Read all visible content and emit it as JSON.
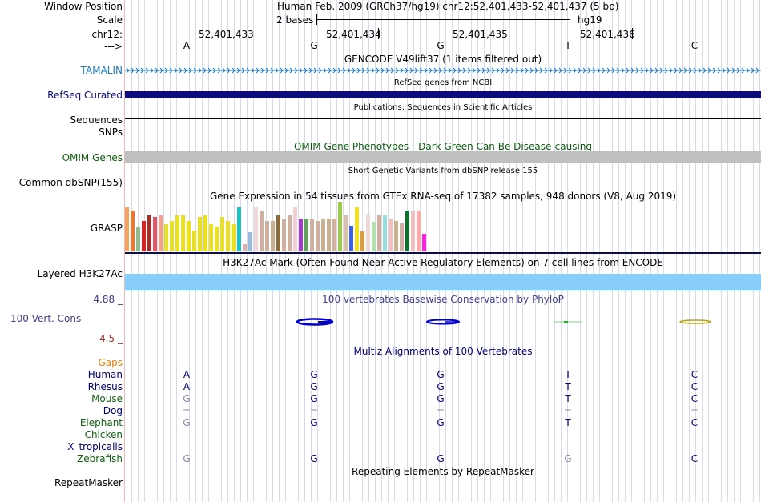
{
  "header": {
    "window_position_label": "Window Position",
    "window_position_value": "Human Feb. 2009 (GRCh37/hg19)   chr12:52,401,433-52,401,437 (5 bp)",
    "scale_label": "Scale",
    "scale_value": "2 bases",
    "scale_assembly": "hg19",
    "chrom_label": "chr12:",
    "positions": [
      "52,401,433",
      "52,401,434",
      "52,401,435",
      "52,401,436"
    ],
    "strand_label": "--->",
    "bases": [
      "A",
      "G",
      "G",
      "T",
      "C"
    ]
  },
  "tracks": {
    "gencode_title": "GENCODE V49lift37 (1 items filtered out)",
    "tamalin_label": "TAMALIN",
    "refseq_title": "RefSeq genes from NCBI",
    "refseq_label": "RefSeq Curated",
    "pubs_title": "Publications: Sequences in Scientific Articles",
    "sequences_label": "Sequences",
    "snps_label": "SNPs",
    "omim_title": "OMIM Gene Phenotypes - Dark Green Can Be Disease-causing",
    "omim_label": "OMIM Genes",
    "dbsnp_title": "Short Genetic Variants from dbSNP release 155",
    "dbsnp_label": "Common dbSNP(155)",
    "gtex_title": "Gene Expression in 54 tissues from GTEx RNA-seq of 17382 samples, 948 donors (V8, Aug 2019)",
    "grasp_label": "GRASP",
    "h3k27ac_title": "H3K27Ac Mark (Often Found Near Active Regulatory Elements) on 7 cell lines from ENCODE",
    "h3k27ac_label": "Layered H3K27Ac",
    "phylop_max": "4.88 _",
    "phylop_title": "100 vertebrates Basewise Conservation by PhyloP",
    "cons_label": "100 Vert. Cons",
    "phylop_min": "-4.5 _",
    "multiz_title": "Multiz Alignments of 100 Vertebrates",
    "repeat_title": "Repeating Elements by RepeatMasker",
    "repeat_label": "RepeatMasker"
  },
  "gtex_bars": [
    {
      "v": 0.89,
      "c": "#f4a460"
    },
    {
      "v": 0.82,
      "c": "#e57a3a"
    },
    {
      "v": 0.5,
      "c": "#8fbc8f"
    },
    {
      "v": 0.62,
      "c": "#dc2020"
    },
    {
      "v": 0.73,
      "c": "#a0302a"
    },
    {
      "v": 0.7,
      "c": "#e0556a"
    },
    {
      "v": 0.73,
      "c": "#f5a08a"
    },
    {
      "v": 0.55,
      "c": "#e8e020"
    },
    {
      "v": 0.62,
      "c": "#e8e020"
    },
    {
      "v": 0.72,
      "c": "#e8e020"
    },
    {
      "v": 0.72,
      "c": "#e8e020"
    },
    {
      "v": 0.62,
      "c": "#e8e020"
    },
    {
      "v": 0.42,
      "c": "#e8e020"
    },
    {
      "v": 0.69,
      "c": "#e8e020"
    },
    {
      "v": 0.72,
      "c": "#e8e020"
    },
    {
      "v": 0.55,
      "c": "#e8e020"
    },
    {
      "v": 0.5,
      "c": "#e8e020"
    },
    {
      "v": 0.69,
      "c": "#e8e020"
    },
    {
      "v": 0.62,
      "c": "#e8e020"
    },
    {
      "v": 0.55,
      "c": "#e8e020"
    },
    {
      "v": 0.89,
      "c": "#20c0c0"
    },
    {
      "v": 0.14,
      "c": "#d8b0b0"
    },
    {
      "v": 0.38,
      "c": "#99bbdd"
    },
    {
      "v": 0.89,
      "c": "#f0d8d8"
    },
    {
      "v": 0.82,
      "c": "#d0b0a0"
    },
    {
      "v": 0.62,
      "c": "#d0b0a0"
    },
    {
      "v": 0.62,
      "c": "#c8b090"
    },
    {
      "v": 0.73,
      "c": "#8c6a3a"
    },
    {
      "v": 0.66,
      "c": "#d0b0a0"
    },
    {
      "v": 0.72,
      "c": "#d0b0a0"
    },
    {
      "v": 0.9,
      "c": "#f0d0d0"
    },
    {
      "v": 0.66,
      "c": "#a040c0"
    },
    {
      "v": 0.66,
      "c": "#60a060"
    },
    {
      "v": 0.66,
      "c": "#d0b0a0"
    },
    {
      "v": 0.62,
      "c": "#d0b0a0"
    },
    {
      "v": 0.66,
      "c": "#c8b090"
    },
    {
      "v": 0.66,
      "c": "#c8b090"
    },
    {
      "v": 0.66,
      "c": "#d0b0a0"
    },
    {
      "v": 1.0,
      "c": "#99cc44"
    },
    {
      "v": 0.73,
      "c": "#d8c0b0"
    },
    {
      "v": 0.51,
      "c": "#4060e0"
    },
    {
      "v": 0.89,
      "c": "#f0e020"
    },
    {
      "v": 0.4,
      "c": "#d8a040"
    },
    {
      "v": 0.76,
      "c": "#f0d8d8"
    },
    {
      "v": 0.6,
      "c": "#b0e0b0"
    },
    {
      "v": 0.73,
      "c": "#d0b0a0"
    },
    {
      "v": 0.73,
      "c": "#99dddd"
    },
    {
      "v": 0.66,
      "c": "#f0c0c0"
    },
    {
      "v": 0.62,
      "c": "#c8b090"
    },
    {
      "v": 0.56,
      "c": "#d0b0a0"
    },
    {
      "v": 0.82,
      "c": "#107030"
    },
    {
      "v": 0.8,
      "c": "#f0c0c0"
    },
    {
      "v": 0.8,
      "c": "#ffaaaa"
    },
    {
      "v": 0.35,
      "c": "#ff20e0"
    }
  ],
  "species": [
    {
      "name": "Gaps",
      "color": "#e08010",
      "bases": [
        "",
        "",
        "",
        "",
        ""
      ],
      "base_colors": []
    },
    {
      "name": "Human",
      "color": "#000070",
      "bases": [
        "A",
        "G",
        "G",
        "T",
        "C"
      ],
      "base_colors": [
        "#000070",
        "#000070",
        "#000070",
        "#000070",
        "#000070"
      ]
    },
    {
      "name": "Rhesus",
      "color": "#000070",
      "bases": [
        "A",
        "G",
        "G",
        "T",
        "C"
      ],
      "base_colors": [
        "#000070",
        "#000070",
        "#000070",
        "#000070",
        "#000070"
      ]
    },
    {
      "name": "Mouse",
      "color": "#106010",
      "bases": [
        "G",
        "G",
        "G",
        "T",
        "C"
      ],
      "base_colors": [
        "#8888aa",
        "#000070",
        "#000070",
        "#000070",
        "#000070"
      ]
    },
    {
      "name": "Dog",
      "color": "#000070",
      "bases": [
        "=",
        "=",
        "=",
        "=",
        "="
      ],
      "base_colors": [
        "#8888aa",
        "#8888aa",
        "#8888aa",
        "#8888aa",
        "#8888aa"
      ]
    },
    {
      "name": "Elephant",
      "color": "#106010",
      "bases": [
        "G",
        "G",
        "G",
        "T",
        "C"
      ],
      "base_colors": [
        "#8888aa",
        "#000070",
        "#000070",
        "#000070",
        "#000070"
      ]
    },
    {
      "name": "Chicken",
      "color": "#106010",
      "bases": [
        "",
        "",
        "",
        "",
        ""
      ],
      "base_colors": []
    },
    {
      "name": "X_tropicalis",
      "color": "#000070",
      "bases": [
        "",
        "",
        "",
        "",
        ""
      ],
      "base_colors": []
    },
    {
      "name": "Zebrafish",
      "color": "#106010",
      "bases": [
        "G",
        "G",
        "G",
        "G",
        "C"
      ],
      "base_colors": [
        "#8888aa",
        "#000070",
        "#000070",
        "#8888aa",
        "#000070"
      ]
    }
  ],
  "colors": {
    "tamalin": "#1a7bbf",
    "refseq": "#0c0c78",
    "omim": "#0c5c0c",
    "omim_bar": "#c0c0c0",
    "h3k27ac": "#87cefa",
    "phylop": "#40408a",
    "gridline": "#d8d8ee"
  }
}
